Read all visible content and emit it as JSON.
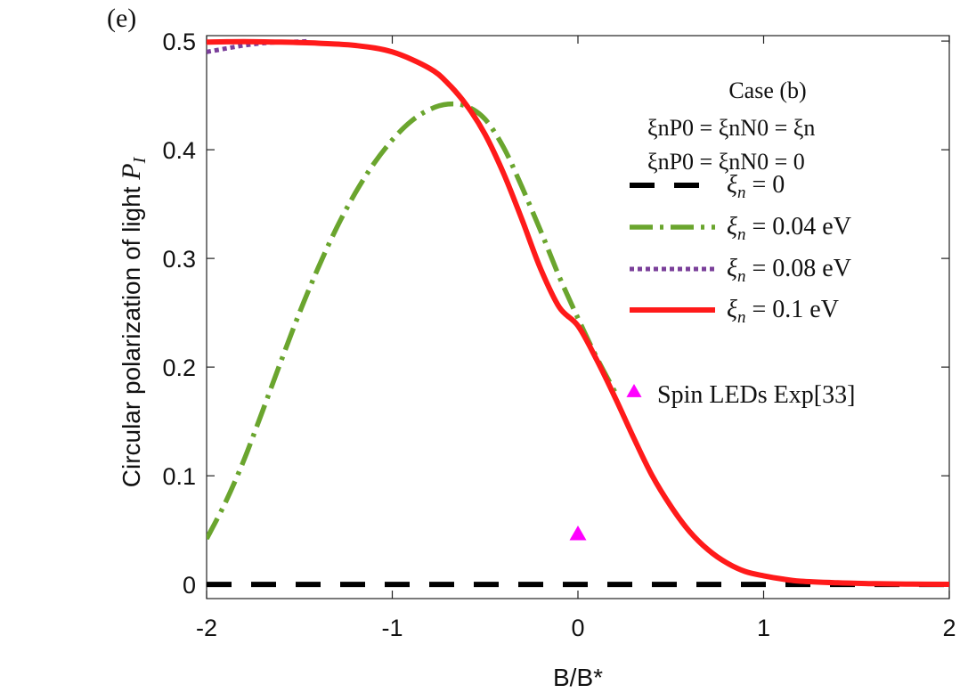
{
  "chart_data": {
    "type": "line",
    "panel_label": "(e)",
    "xlabel": "B/B*",
    "ylabel_text": "Circular polarization of light ",
    "ylabel_symbol": "P",
    "ylabel_subscript": "I",
    "xlim": [
      -2,
      2
    ],
    "ylim": [
      -0.013,
      0.505
    ],
    "xticks": [
      -2,
      -1,
      0,
      1,
      2
    ],
    "xtick_labels": [
      "-2",
      "-1",
      "0",
      "1",
      "2"
    ],
    "yticks": [
      0,
      0.1,
      0.2,
      0.3,
      0.4,
      0.5
    ],
    "ytick_labels": [
      "0",
      "0.1",
      "0.2",
      "0.3",
      "0.4",
      "0.5"
    ],
    "grid": false,
    "legend": {
      "position": "right",
      "title": "Case (b)",
      "condition_1": "ξnP0 = ξnN0 = ξn",
      "condition_2": "ξnP0 = ξnN0 = 0"
    },
    "series": [
      {
        "name": "ξn = 0",
        "symbol": "ξ",
        "subscript": "n",
        "value_text": " = 0",
        "color": "#000000",
        "style": "dashed",
        "x": [
          -2,
          2
        ],
        "y": [
          0,
          0
        ]
      },
      {
        "name": "ξn = 0.04 eV",
        "symbol": "ξ",
        "subscript": "n",
        "value_text": " = 0.04 eV",
        "color": "#6aa52e",
        "style": "dash-dot",
        "x": [
          -2.0,
          -1.9,
          -1.8,
          -1.7,
          -1.6,
          -1.5,
          -1.4,
          -1.3,
          -1.2,
          -1.1,
          -1.0,
          -0.9,
          -0.8,
          -0.7,
          -0.6,
          -0.5,
          -0.4,
          -0.3,
          -0.2,
          -0.1,
          0.0,
          0.1,
          0.2
        ],
        "y": [
          0.042,
          0.075,
          0.114,
          0.159,
          0.205,
          0.25,
          0.291,
          0.328,
          0.36,
          0.387,
          0.409,
          0.426,
          0.437,
          0.442,
          0.44,
          0.428,
          0.402,
          0.365,
          0.325,
          0.283,
          0.245,
          0.209,
          0.177
        ]
      },
      {
        "name": "ξn = 0.08 eV",
        "symbol": "ξ",
        "subscript": "n",
        "value_text": " = 0.08 eV",
        "color": "#7a3f9a",
        "style": "dotted",
        "x": [
          -2.0,
          -1.9,
          -1.8,
          -1.7,
          -1.6,
          -1.5,
          -1.45
        ],
        "y": [
          0.49,
          0.493,
          0.496,
          0.498,
          0.499,
          0.4995,
          0.4998
        ]
      },
      {
        "name": "ξn = 0.1 eV",
        "symbol": "ξ",
        "subscript": "n",
        "value_text": " = 0.1 eV",
        "color": "#ff1a1a",
        "style": "solid",
        "x": [
          -2.0,
          -1.8,
          -1.6,
          -1.4,
          -1.2,
          -1.0,
          -0.8,
          -0.7,
          -0.6,
          -0.5,
          -0.4,
          -0.3,
          -0.2,
          -0.1,
          0.0,
          0.1,
          0.2,
          0.3,
          0.4,
          0.5,
          0.6,
          0.7,
          0.8,
          0.9,
          1.0,
          1.1,
          1.2,
          1.4,
          1.6,
          1.8,
          2.0
        ],
        "y": [
          0.499,
          0.4995,
          0.499,
          0.498,
          0.496,
          0.49,
          0.475,
          0.461,
          0.441,
          0.414,
          0.378,
          0.335,
          0.29,
          0.255,
          0.238,
          0.207,
          0.172,
          0.135,
          0.1,
          0.072,
          0.049,
          0.032,
          0.02,
          0.012,
          0.008,
          0.005,
          0.003,
          0.0015,
          0.0007,
          0.0003,
          0.0001
        ]
      }
    ],
    "markers": [
      {
        "name": "Spin LEDs Exp[33]",
        "color": "#ff00ff",
        "shape": "triangle",
        "x": [
          0.0
        ],
        "y": [
          0.046
        ]
      }
    ]
  }
}
